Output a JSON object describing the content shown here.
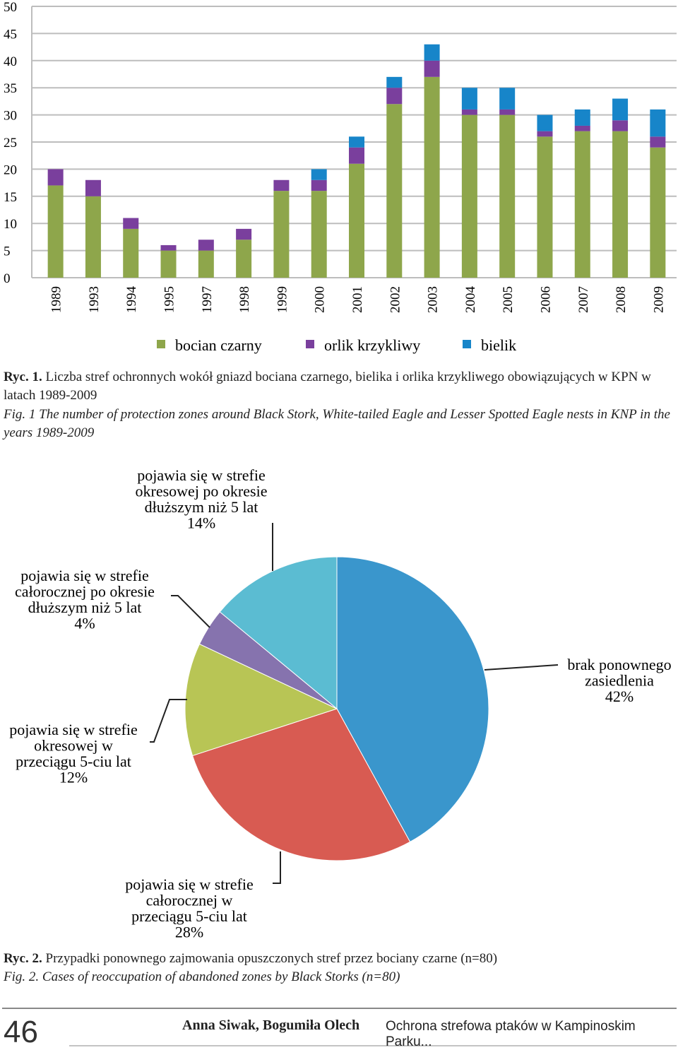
{
  "chart_data": [
    {
      "type": "bar",
      "stacked": true,
      "categories": [
        "1989",
        "1993",
        "1994",
        "1995",
        "1997",
        "1998",
        "1999",
        "2000",
        "2001",
        "2002",
        "2003",
        "2004",
        "2005",
        "2006",
        "2007",
        "2008",
        "2009"
      ],
      "series": [
        {
          "name": "bocian czarny",
          "color": "#8ea64b",
          "values": [
            17,
            15,
            9,
            5,
            5,
            7,
            16,
            16,
            21,
            32,
            37,
            30,
            30,
            26,
            27,
            27,
            24
          ]
        },
        {
          "name": "orlik krzykliwy",
          "color": "#7a3f9d",
          "values": [
            3,
            3,
            2,
            1,
            2,
            2,
            2,
            2,
            3,
            3,
            3,
            1,
            1,
            1,
            1,
            2,
            2
          ]
        },
        {
          "name": "bielik",
          "color": "#1785c9",
          "values": [
            0,
            0,
            0,
            0,
            0,
            0,
            0,
            2,
            2,
            2,
            3,
            4,
            4,
            3,
            3,
            4,
            5
          ]
        }
      ],
      "ylim": [
        0,
        50
      ],
      "yticks": [
        0,
        5,
        10,
        15,
        20,
        25,
        30,
        35,
        40,
        45,
        50
      ],
      "grid": true,
      "legend": "bottom"
    },
    {
      "type": "pie",
      "categories": [
        [
          "brak ponownego",
          "zasiedlenia"
        ],
        [
          "pojawia się w strefie",
          "całorocznej w",
          "przeciągu 5-ciu lat"
        ],
        [
          "pojawia się w strefie",
          "okresowej w",
          "przeciągu 5-ciu lat"
        ],
        [
          "pojawia się w strefie",
          "całorocznej po okresie",
          "dłuższym niż 5 lat"
        ],
        [
          "pojawia się w strefie",
          "okresowej po okresie",
          "dłuższym niż 5 lat"
        ]
      ],
      "values": [
        42,
        28,
        12,
        4,
        14
      ],
      "value_labels": [
        "42%",
        "28%",
        "12%",
        "4%",
        "14%"
      ],
      "colors": [
        "#3a96cc",
        "#d85b52",
        "#b8c555",
        "#8673ae",
        "#5bbcd2"
      ]
    }
  ],
  "captions": [
    {
      "label": "Ryc. 1.",
      "text": "Liczba stref ochronnych wokół gniazd bociana czarnego, bielika i orlika krzykliwego obowiązujących w KPN w latach 1989-2009"
    },
    {
      "label": "Fig. 1",
      "text": "The number of protection zones around Black Stork, White-tailed Eagle and Lesser Spotted Eagle nests in KNP in the years 1989-2009"
    },
    {
      "label": "Ryc. 2.",
      "text": "Przypadki ponownego zajmowania opuszczonych stref przez bociany czarne (n=80)"
    },
    {
      "label": "Fig. 2.",
      "text": "Cases of reoccupation of abandoned zones by Black Storks (n=80)"
    }
  ],
  "footer": {
    "page_number": "46",
    "authors": "Anna Siwak, Bogumiła Olech",
    "running_title": "Ochrona strefowa ptaków w Kampinoskim Parku..."
  }
}
